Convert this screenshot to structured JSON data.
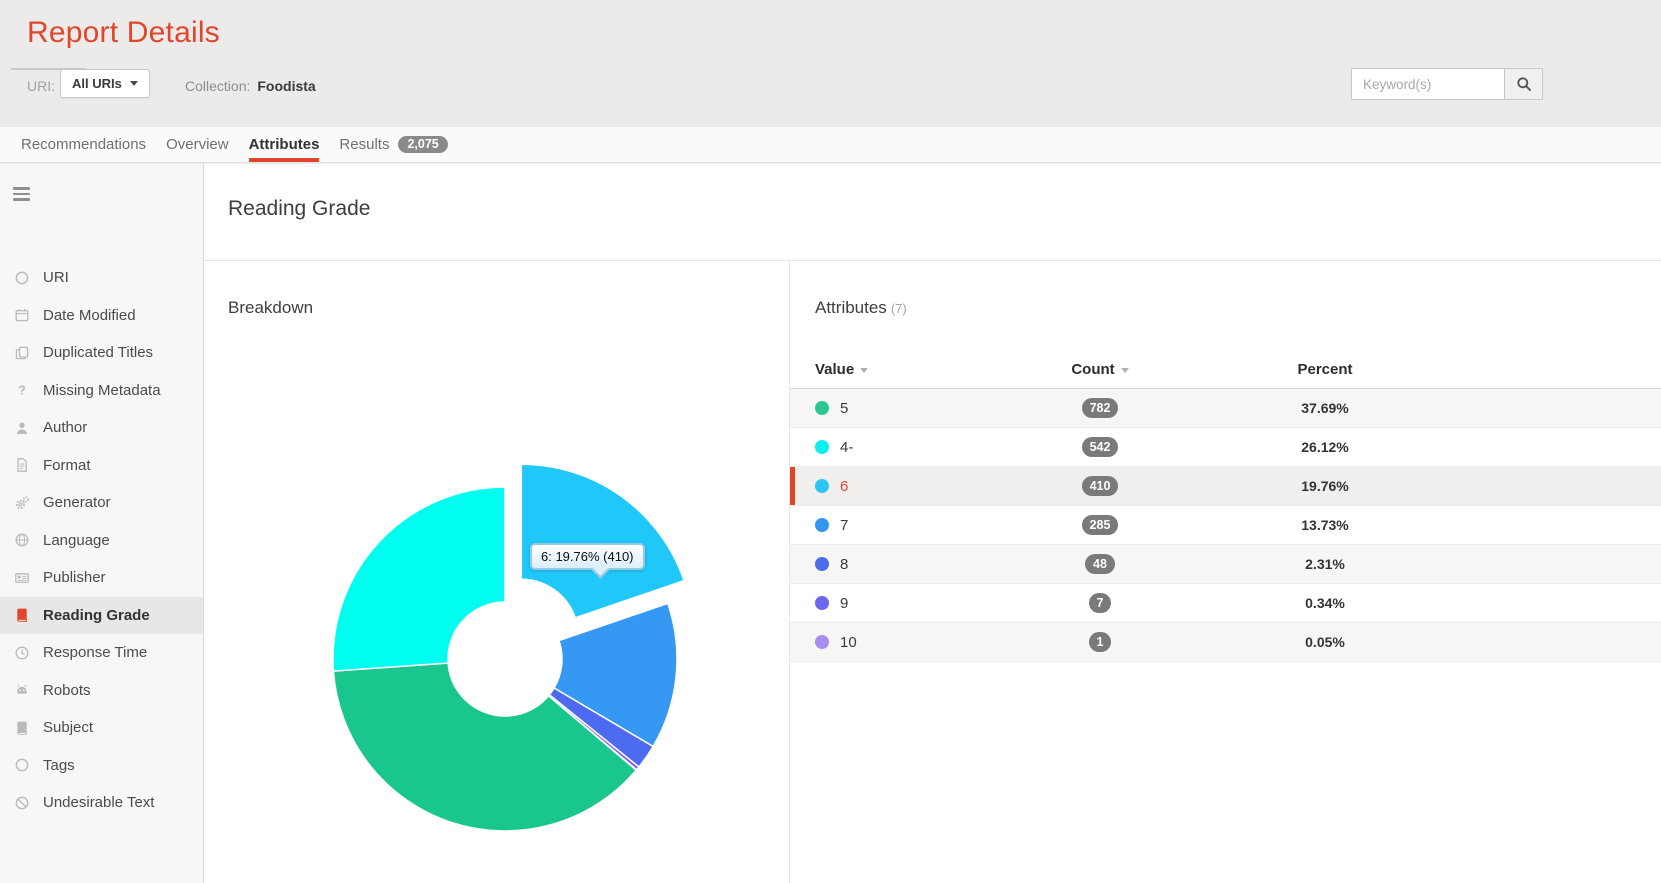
{
  "header": {
    "title": "Report Details",
    "uri_label": "URI:",
    "uri_dropdown_value": "All URIs",
    "collection_label": "Collection:",
    "collection_value": "Foodista",
    "search_placeholder": "Keyword(s)"
  },
  "tabs": [
    {
      "label": "Recommendations",
      "active": false
    },
    {
      "label": "Overview",
      "active": false
    },
    {
      "label": "Attributes",
      "active": true
    },
    {
      "label": "Results",
      "active": false,
      "badge": "2,075"
    }
  ],
  "sidebar": {
    "items": [
      {
        "label": "URI",
        "icon": "circle",
        "active": false
      },
      {
        "label": "Date Modified",
        "icon": "calendar",
        "active": false
      },
      {
        "label": "Duplicated Titles",
        "icon": "copy",
        "active": false
      },
      {
        "label": "Missing Metadata",
        "icon": "question",
        "active": false
      },
      {
        "label": "Author",
        "icon": "user",
        "active": false
      },
      {
        "label": "Format",
        "icon": "file",
        "active": false
      },
      {
        "label": "Generator",
        "icon": "gears",
        "active": false
      },
      {
        "label": "Language",
        "icon": "globe",
        "active": false
      },
      {
        "label": "Publisher",
        "icon": "card",
        "active": false
      },
      {
        "label": "Reading Grade",
        "icon": "book",
        "active": true
      },
      {
        "label": "Response Time",
        "icon": "clock",
        "active": false
      },
      {
        "label": "Robots",
        "icon": "robot",
        "active": false
      },
      {
        "label": "Subject",
        "icon": "book",
        "active": false
      },
      {
        "label": "Tags",
        "icon": "circle",
        "active": false
      },
      {
        "label": "Undesirable Text",
        "icon": "ban",
        "active": false
      }
    ]
  },
  "main": {
    "page_title": "Reading Grade",
    "breakdown_title": "Breakdown",
    "attributes_title": "Attributes",
    "attributes_count": "(7)",
    "table": {
      "columns": [
        {
          "label": "Value",
          "sortable": true
        },
        {
          "label": "Count",
          "sortable": true
        },
        {
          "label": "Percent",
          "sortable": false
        }
      ],
      "rows": [
        {
          "value": "5",
          "count": "782",
          "percent": "37.69%",
          "dot_color": "#2cc690",
          "selected": false
        },
        {
          "value": "4-",
          "count": "542",
          "percent": "26.12%",
          "dot_color": "#0df0f0",
          "selected": false
        },
        {
          "value": "6",
          "count": "410",
          "percent": "19.76%",
          "dot_color": "#2cc5f4",
          "selected": true
        },
        {
          "value": "7",
          "count": "285",
          "percent": "13.73%",
          "dot_color": "#3596ef",
          "selected": false
        },
        {
          "value": "8",
          "count": "48",
          "percent": "2.31%",
          "dot_color": "#4b6ceb",
          "selected": false
        },
        {
          "value": "9",
          "count": "7",
          "percent": "0.34%",
          "dot_color": "#6d66ee",
          "selected": false
        },
        {
          "value": "10",
          "count": "1",
          "percent": "0.05%",
          "dot_color": "#a78ef0",
          "selected": false
        }
      ]
    }
  },
  "chart_data": {
    "type": "pie",
    "title": "Breakdown",
    "donut": true,
    "start_angle_deg": 0,
    "direction": "clockwise-from-top",
    "total": 2075,
    "tooltip": "6: 19.76% (410)",
    "slices": [
      {
        "label": "6",
        "value": 410,
        "percent": 19.76,
        "color": "#1fc8f8",
        "exploded": true
      },
      {
        "label": "7",
        "value": 285,
        "percent": 13.73,
        "color": "#3598f2",
        "exploded": false
      },
      {
        "label": "8",
        "value": 48,
        "percent": 2.31,
        "color": "#4d6bf0",
        "exploded": false
      },
      {
        "label": "9",
        "value": 7,
        "percent": 0.34,
        "color": "#7d62ee",
        "exploded": false
      },
      {
        "label": "10",
        "value": 1,
        "percent": 0.05,
        "color": "#a78ef0",
        "exploded": false
      },
      {
        "label": "5",
        "value": 782,
        "percent": 37.69,
        "color": "#19c78e",
        "exploded": false
      },
      {
        "label": "4-",
        "value": 542,
        "percent": 26.12,
        "color": "#00fef0",
        "exploded": false
      }
    ]
  },
  "colors": {
    "accent_red": "#e2452c",
    "badge_gray": "#7a7a7a"
  }
}
